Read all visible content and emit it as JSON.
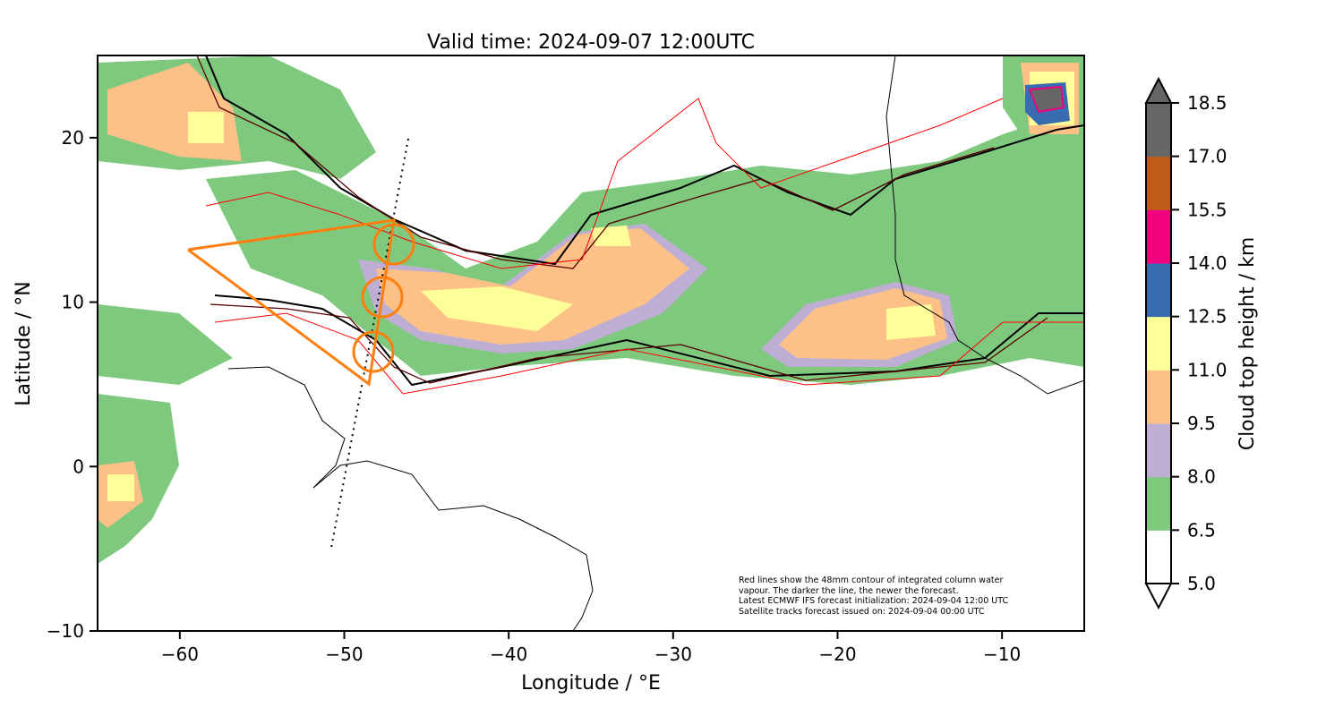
{
  "title": "Valid time: 2024-09-07 12:00UTC",
  "xlabel": "Longitude / °E",
  "ylabel": "Latitude / °N",
  "xticks": [
    -60,
    -50,
    -40,
    -30,
    -20,
    -10
  ],
  "yticks": [
    -10,
    0,
    10,
    20
  ],
  "xlim": [
    -65,
    -5
  ],
  "ylim": [
    -10,
    25
  ],
  "colorbar": {
    "label": "Cloud top height / km",
    "ticks": [
      "5.0",
      "6.5",
      "8.0",
      "9.5",
      "11.0",
      "12.5",
      "14.0",
      "15.5",
      "17.0",
      "18.5"
    ],
    "colors": [
      "#ffffff",
      "#7fc97f",
      "#beaed4",
      "#fdc086",
      "#ffff99",
      "#386cb0",
      "#f0027f",
      "#bf5b17",
      "#666666"
    ]
  },
  "annotation": [
    "Red lines show the 48mm contour of integrated column water",
    "vapour. The darker the line, the newer the forecast.",
    "Latest ECMWF IFS forecast initialization: 2024-09-04 12:00 UTC",
    "Satellite tracks forecast issued on: 2024-09-04 00:00 UTC"
  ],
  "track_color": "#ff7f0e"
}
